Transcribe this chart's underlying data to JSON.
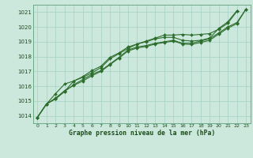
{
  "title": "Graphe pression niveau de la mer (hPa)",
  "bg_color": "#cce8dd",
  "grid_color": "#aad4c8",
  "line_color": "#2d6e2d",
  "marker_color": "#2d6e2d",
  "ylim": [
    1013.5,
    1021.5
  ],
  "xlim": [
    -0.5,
    23.5
  ],
  "yticks": [
    1014,
    1015,
    1016,
    1017,
    1018,
    1019,
    1020,
    1021
  ],
  "xticks": [
    0,
    1,
    2,
    3,
    4,
    5,
    6,
    7,
    8,
    9,
    10,
    11,
    12,
    13,
    14,
    15,
    16,
    17,
    18,
    19,
    20,
    21,
    22,
    23
  ],
  "s1": [
    1013.9,
    1014.8,
    1015.15,
    1015.65,
    1016.35,
    1016.65,
    1017.05,
    1017.35,
    1017.95,
    1018.25,
    1018.65,
    1018.85,
    1019.0,
    1019.2,
    1019.3,
    1019.3,
    1019.1,
    1019.05,
    1019.1,
    1019.25,
    1019.9,
    1020.35,
    1021.1,
    null
  ],
  "s2": [
    1013.9,
    1014.8,
    1015.5,
    1016.15,
    1016.35,
    1016.6,
    1016.9,
    1017.25,
    1017.85,
    1018.2,
    1018.55,
    1018.85,
    1019.05,
    1019.25,
    1019.45,
    1019.45,
    1019.5,
    1019.45,
    1019.5,
    1019.55,
    1019.85,
    1020.25,
    1021.05,
    null
  ],
  "s3": [
    1013.9,
    1014.8,
    1015.15,
    1015.65,
    1016.1,
    1016.45,
    1016.8,
    1017.05,
    1017.5,
    1017.95,
    1018.45,
    1018.65,
    1018.75,
    1018.9,
    1019.0,
    1019.1,
    1018.9,
    1018.9,
    1019.05,
    1019.2,
    1019.6,
    1020.0,
    1020.3,
    1021.2
  ],
  "s4": [
    1013.9,
    1014.8,
    1015.2,
    1015.7,
    1016.05,
    1016.35,
    1016.7,
    1017.0,
    1017.45,
    1017.9,
    1018.38,
    1018.58,
    1018.68,
    1018.85,
    1018.95,
    1019.05,
    1018.85,
    1018.82,
    1018.95,
    1019.1,
    1019.52,
    1019.92,
    1020.22,
    1021.2
  ]
}
